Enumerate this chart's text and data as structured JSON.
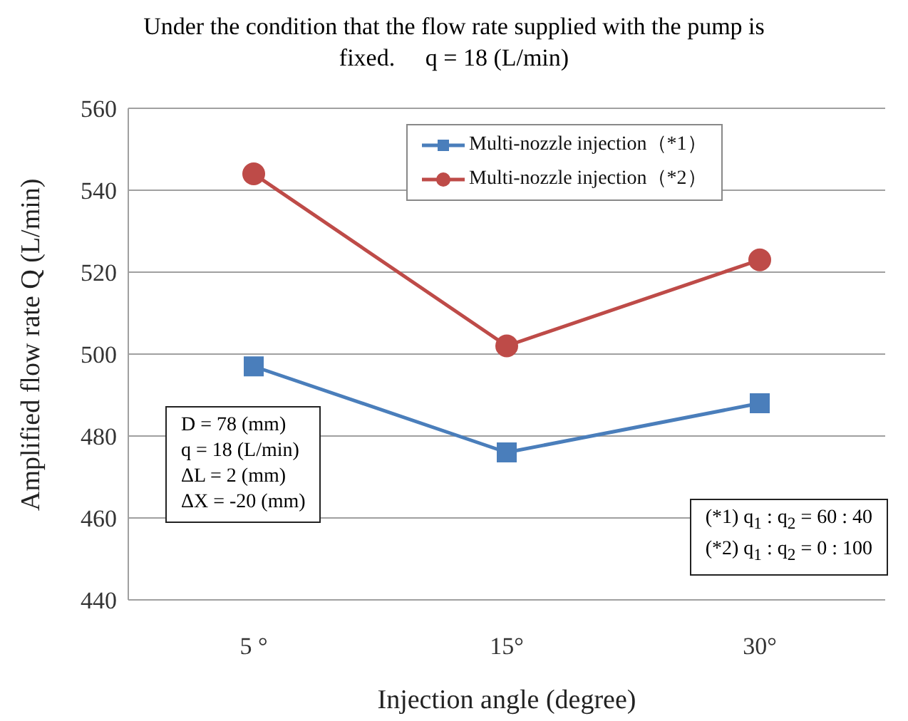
{
  "chart_data": {
    "type": "line",
    "title": "Under the condition that the flow rate supplied with the pump is fixed.     q = 18 (L/min)",
    "xlabel": "Injection angle (degree)",
    "ylabel": "Amplified flow rate Q (L/min)",
    "categories": [
      "5 °",
      "15°",
      "30°"
    ],
    "series": [
      {
        "name": "Multi-nozzle injection（*1）",
        "color": "#4a7ebb",
        "marker": "square",
        "values": [
          497,
          476,
          488
        ]
      },
      {
        "name": "Multi-nozzle injection（*2）",
        "color": "#be4b48",
        "marker": "circle",
        "values": [
          544,
          502,
          523
        ]
      }
    ],
    "ylim": [
      440,
      560
    ],
    "yticks": [
      440,
      460,
      480,
      500,
      520,
      540,
      560
    ],
    "grid": "y",
    "legend": "top",
    "annotations": [
      "D = 78 (mm)\nq = 18 (L/min)\nΔL = 2 (mm)\nΔX = -20 (mm)",
      "(*1) q$_{1}$ : q$_{2}$ = 60 : 40\n(*2) q$_{1}$ : q$_{2}$ = 0 : 100"
    ]
  }
}
